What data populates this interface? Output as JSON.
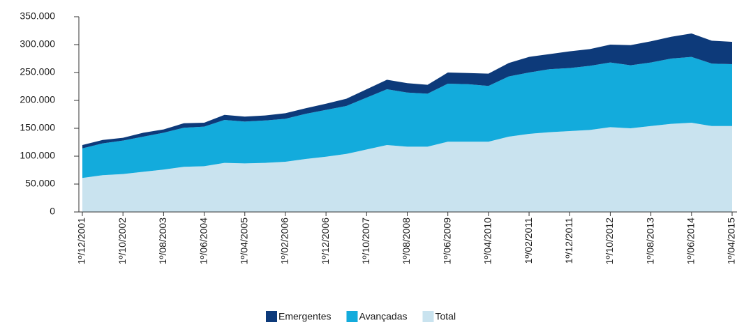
{
  "chart_data": {
    "type": "stacked_area",
    "categories": [
      "1º/12/2001",
      null,
      "1º/10/2002",
      null,
      "1º/08/2003",
      null,
      "1º/06/2004",
      null,
      "1º/04/2005",
      null,
      "1º/02/2006",
      null,
      "1º/12/2006",
      null,
      "1º/10/2007",
      null,
      "1º/08/2008",
      null,
      "1º/06/2009",
      null,
      "1º/04/2010",
      null,
      "1º/02/2011",
      null,
      "1º/12/2011",
      null,
      "1º/10/2012",
      null,
      "1º/08/2013",
      null,
      "1º/06/2014",
      null,
      "1º/04/2015"
    ],
    "series": [
      {
        "name": "Emergentes",
        "color": "#0d3a7a",
        "values": [
          6000,
          6000,
          5000,
          7000,
          6000,
          8000,
          7000,
          9000,
          9000,
          9000,
          10000,
          10000,
          11000,
          13000,
          15000,
          17000,
          17000,
          16000,
          20000,
          20000,
          22000,
          24000,
          28000,
          27000,
          30000,
          30000,
          32000,
          36000,
          38000,
          39000,
          42000,
          41000,
          40000
        ]
      },
      {
        "name": "Avançadas",
        "color": "#13abdc",
        "values": [
          53000,
          57000,
          60000,
          63000,
          66000,
          70000,
          71000,
          77000,
          75000,
          76000,
          77000,
          81000,
          84000,
          86000,
          93000,
          100000,
          97000,
          95000,
          104000,
          103000,
          100000,
          108000,
          110000,
          113000,
          113000,
          115000,
          116000,
          113000,
          114000,
          117000,
          118000,
          112000,
          111000
        ]
      },
      {
        "name": "Total",
        "color": "#c9e3ef",
        "values": [
          61000,
          66000,
          68000,
          72000,
          76000,
          81000,
          82000,
          88000,
          87000,
          88000,
          90000,
          95000,
          99000,
          104000,
          112000,
          120000,
          117000,
          117000,
          126000,
          126000,
          126000,
          135000,
          140000,
          143000,
          145000,
          147000,
          152000,
          150000,
          154000,
          158000,
          160000,
          154000,
          154000
        ]
      }
    ],
    "ylim": [
      0,
      350000
    ],
    "yticks": [
      0,
      {
        "value": 50000,
        "label": "50.000"
      },
      {
        "value": 100000,
        "label": "100.000"
      },
      {
        "value": 150000,
        "label": "150.000"
      },
      {
        "value": 200000,
        "label": "200.000"
      },
      {
        "value": 250000,
        "label": "250.000"
      },
      {
        "value": 300000,
        "label": "300.000"
      },
      {
        "value": 350000,
        "label": "350.000"
      }
    ],
    "legend": "bottom"
  }
}
